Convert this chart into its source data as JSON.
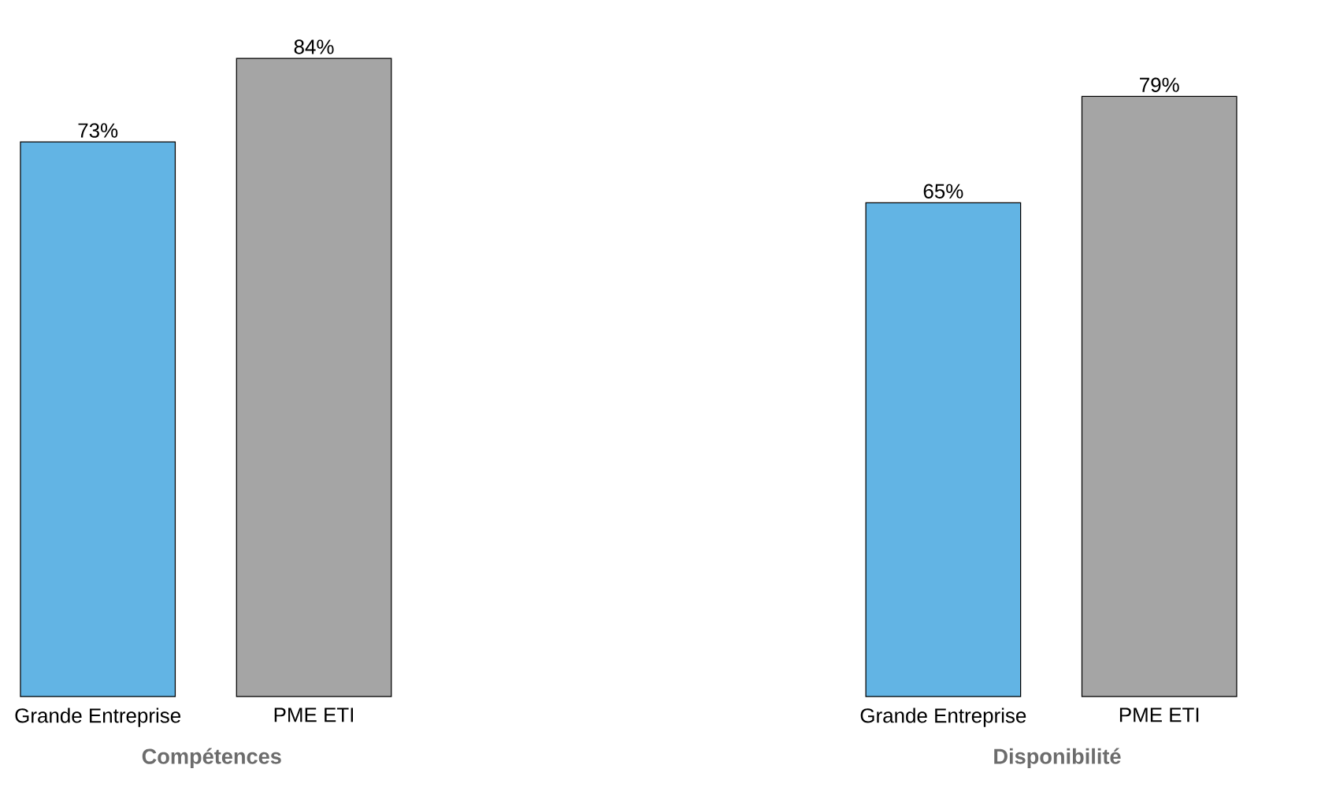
{
  "chart_data": [
    {
      "type": "bar",
      "categories": [
        "Grande Entreprise",
        "PME ETI"
      ],
      "values": [
        73,
        84
      ],
      "value_labels": [
        "73%",
        "84%"
      ],
      "colors": [
        "#62b4e4",
        "#a5a5a5"
      ],
      "xlabel": "Compétences"
    },
    {
      "type": "bar",
      "categories": [
        "Grande Entreprise",
        "PME ETI"
      ],
      "values": [
        65,
        79
      ],
      "value_labels": [
        "65%",
        "79%"
      ],
      "colors": [
        "#62b4e4",
        "#a5a5a5"
      ],
      "xlabel": "Disponibilité"
    }
  ]
}
